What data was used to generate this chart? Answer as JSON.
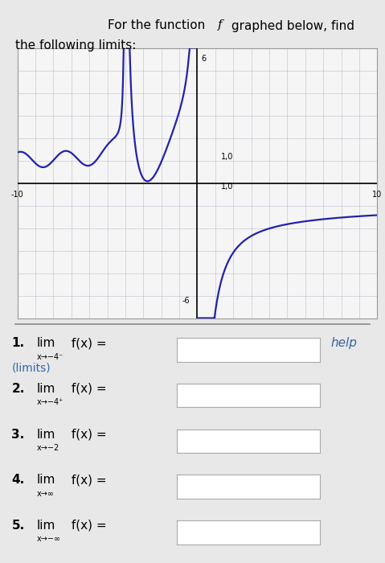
{
  "graph_xlim": [
    -10,
    10
  ],
  "graph_ylim": [
    -6,
    6
  ],
  "graph_bg": "#f5f5f5",
  "page_bg": "#e8e8e8",
  "curve_color": "#2222aa",
  "curve_linewidth": 1.6,
  "grid_color": "#9999bb",
  "grid_alpha": 0.6,
  "box_color": "#ffffff",
  "box_border": "#aaaaaa",
  "help_color": "#336699",
  "links_color": "#3366aa",
  "text_color": "#000000",
  "title1": "For the function ",
  "title_f": "f",
  "title2": " graphed below, find",
  "title3": "the following limits:",
  "q_labels": [
    {
      "bold": "1.",
      "lim": "lim",
      "sub": "x→−4⁻",
      "rest": " f(x) ="
    },
    {
      "bold": "2.",
      "lim": "lim",
      "sub": "x→−4⁺",
      "rest": " f(x) ="
    },
    {
      "bold": "3.",
      "lim": "lim",
      "sub": "x→−2",
      "rest": " f(x) ="
    },
    {
      "bold": "4.",
      "lim": "lim",
      "sub": "x→∞",
      "rest": " f(x) ="
    },
    {
      "bold": "5.",
      "lim": "lim",
      "sub": "x→−∞",
      "rest": " f(x) ="
    }
  ]
}
